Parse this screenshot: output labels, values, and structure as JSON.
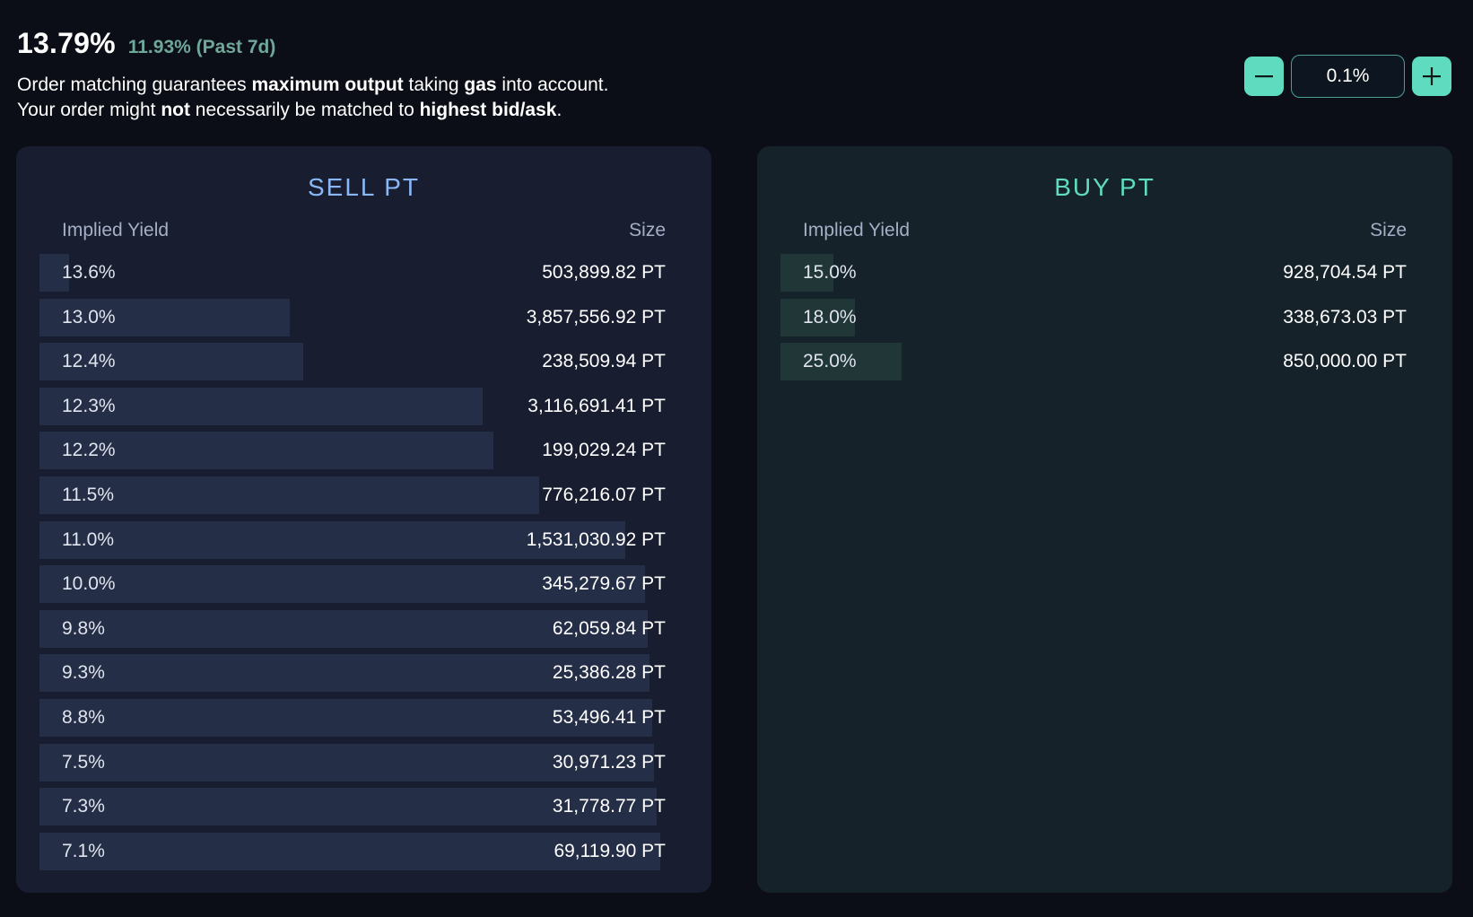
{
  "header": {
    "implied_yield": "13.79%",
    "past_yield": "11.93% (Past 7d)",
    "note_line1": {
      "a": "Order matching guarantees ",
      "b": "maximum output",
      "c": " taking ",
      "d": "gas",
      "e": " into account."
    },
    "note_line2": {
      "a": "Your order might ",
      "b": "not",
      "c": " necessarily be matched to ",
      "d": "highest bid/ask",
      "e": "."
    }
  },
  "stepper": {
    "minus_label": "−",
    "value": "0.1%",
    "plus_label": "+"
  },
  "sell": {
    "title": "SELL PT",
    "col_yield": "Implied Yield",
    "col_size": "Size",
    "rows": [
      {
        "yield": "13.6%",
        "size": "503,899.82 PT",
        "depth": 0.045
      },
      {
        "yield": "13.0%",
        "size": "3,857,556.92 PT",
        "depth": 0.386
      },
      {
        "yield": "12.4%",
        "size": "238,509.94 PT",
        "depth": 0.407
      },
      {
        "yield": "12.3%",
        "size": "3,116,691.41 PT",
        "depth": 0.683
      },
      {
        "yield": "12.2%",
        "size": "199,029.24 PT",
        "depth": 0.7
      },
      {
        "yield": "11.5%",
        "size": "776,216.07 PT",
        "depth": 0.77
      },
      {
        "yield": "11.0%",
        "size": "1,531,030.92 PT",
        "depth": 0.903
      },
      {
        "yield": "10.0%",
        "size": "345,279.67 PT",
        "depth": 0.933
      },
      {
        "yield": "9.8%",
        "size": "62,059.84 PT",
        "depth": 0.938
      },
      {
        "yield": "9.3%",
        "size": "25,386.28 PT",
        "depth": 0.941
      },
      {
        "yield": "8.8%",
        "size": "53,496.41 PT",
        "depth": 0.945
      },
      {
        "yield": "7.5%",
        "size": "30,971.23 PT",
        "depth": 0.948
      },
      {
        "yield": "7.3%",
        "size": "31,778.77 PT",
        "depth": 0.951
      },
      {
        "yield": "7.1%",
        "size": "69,119.90 PT",
        "depth": 0.957
      }
    ]
  },
  "buy": {
    "title": "BUY PT",
    "col_yield": "Implied Yield",
    "col_size": "Size",
    "rows": [
      {
        "yield": "15.0%",
        "size": "928,704.54 PT",
        "depth": 0.082
      },
      {
        "yield": "18.0%",
        "size": "338,673.03 PT",
        "depth": 0.115
      },
      {
        "yield": "25.0%",
        "size": "850,000.00 PT",
        "depth": 0.187
      }
    ]
  }
}
